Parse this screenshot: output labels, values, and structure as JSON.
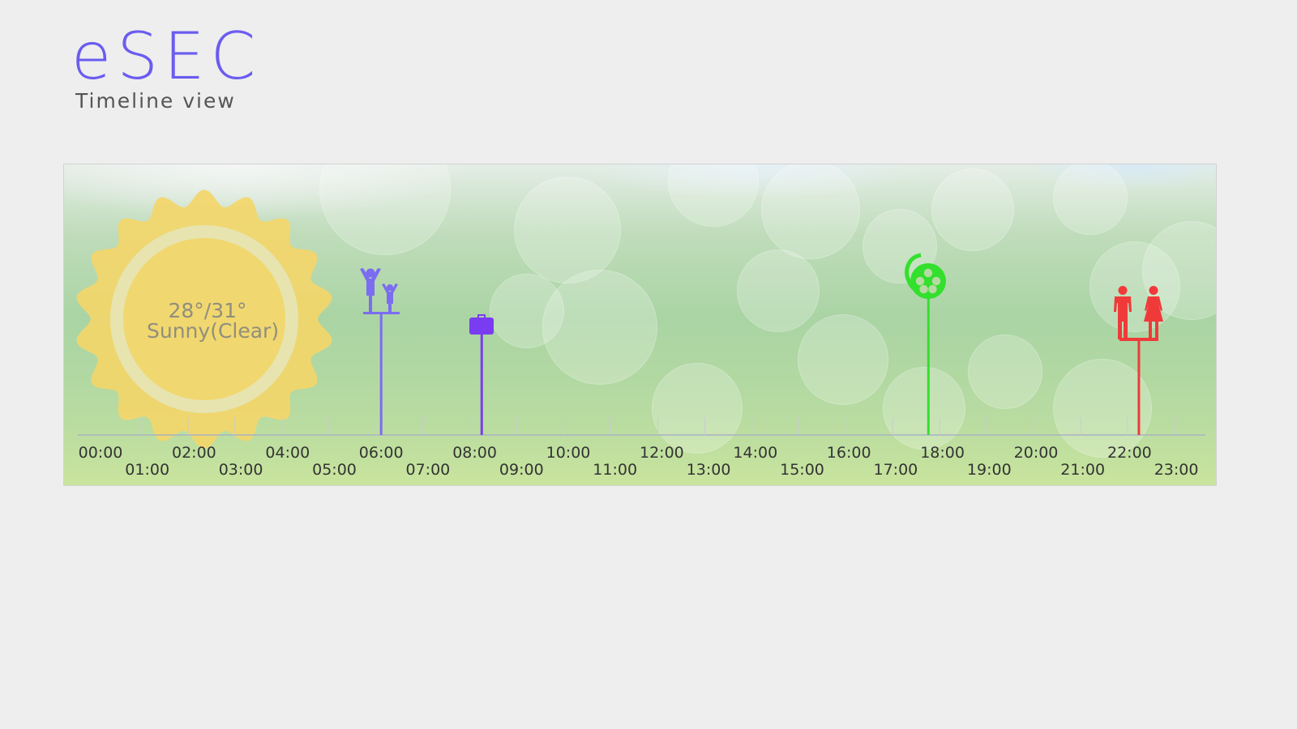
{
  "app": {
    "title": "eSEC",
    "subtitle": "Timeline view"
  },
  "weather": {
    "temperature": "28°/31°",
    "condition": "Sunny(Clear)",
    "icon": "sun-icon",
    "color": "#f3d66a"
  },
  "timeline": {
    "hours": [
      "00:00",
      "01:00",
      "02:00",
      "03:00",
      "04:00",
      "05:00",
      "06:00",
      "07:00",
      "08:00",
      "09:00",
      "10:00",
      "11:00",
      "12:00",
      "13:00",
      "14:00",
      "15:00",
      "16:00",
      "17:00",
      "18:00",
      "19:00",
      "20:00",
      "21:00",
      "22:00",
      "23:00"
    ],
    "events": [
      {
        "name": "family-event",
        "icon": "family-icon",
        "hour": 6.0,
        "color": "#7b6cf0"
      },
      {
        "name": "work-event",
        "icon": "briefcase-icon",
        "hour": 8.15,
        "color": "#7a3cf0"
      },
      {
        "name": "movie-event",
        "icon": "film-reel-icon",
        "hour": 17.7,
        "color": "#33e02d"
      },
      {
        "name": "couple-event",
        "icon": "couple-icon",
        "hour": 22.2,
        "color": "#f03a3a"
      }
    ]
  }
}
